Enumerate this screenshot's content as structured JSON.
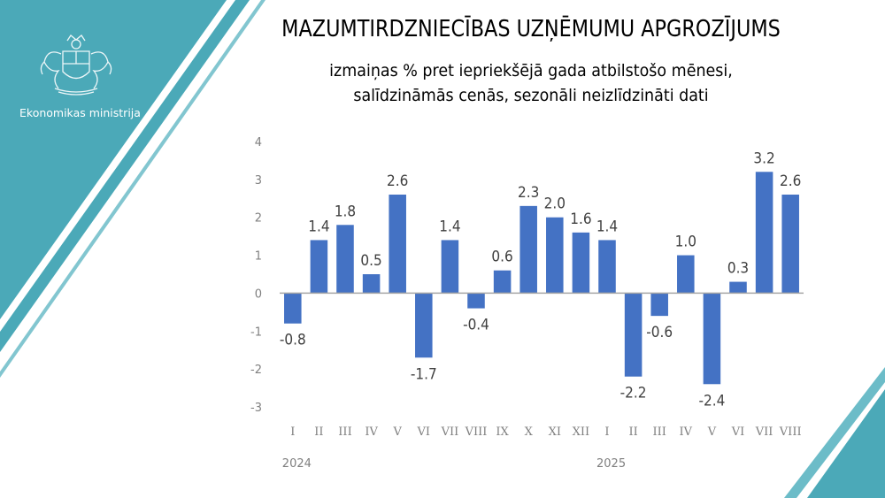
{
  "header": {
    "title": "MAZUMTIRDZNIECĪBAS UZŅĒMUMU APGROZĪJUMS",
    "subtitle_line1": "izmaiņas % pret iepriekšējā gada atbilstošo mēnesi,",
    "subtitle_line2": "salīdzināmās cenās, sezonāli neizlīdzināti dati"
  },
  "branding": {
    "ministry": "Ekonomikas ministrija",
    "logo_icon": "latvia-coat-of-arms-icon"
  },
  "colors": {
    "bar": "#4472C4",
    "panel_teal": "#4BA9B8",
    "panel_teal_light": "#6CBCC8",
    "axis_text": "#7F7F7F"
  },
  "chart_data": {
    "type": "bar",
    "categories": [
      "I",
      "II",
      "III",
      "IV",
      "V",
      "VI",
      "VII",
      "VIII",
      "IX",
      "X",
      "XI",
      "XII",
      "I",
      "II",
      "III",
      "IV",
      "V",
      "VI",
      "VII",
      "VIII"
    ],
    "year_labels": [
      {
        "text": "2024",
        "index": 0
      },
      {
        "text": "2025",
        "index": 12
      }
    ],
    "values": [
      -0.8,
      1.4,
      1.8,
      0.5,
      2.6,
      -1.7,
      1.4,
      -0.4,
      0.6,
      2.3,
      2.0,
      1.6,
      1.4,
      -2.2,
      -0.6,
      1.0,
      -2.4,
      0.3,
      3.2,
      2.6
    ],
    "data_labels": [
      "-0.8",
      "1.4",
      "1.8",
      "0.5",
      "2.6",
      "-1.7",
      "1.4",
      "-0.4",
      "0.6",
      "2.3",
      "2.0",
      "1.6",
      "1.4",
      "-2.2",
      "-0.6",
      "1.0",
      "-2.4",
      "0.3",
      "3.2",
      "2.6"
    ],
    "yticks": [
      4,
      3,
      2,
      1,
      0,
      -1,
      -2,
      -3
    ],
    "ylim": [
      -3,
      4
    ],
    "grid": false,
    "legend": "none"
  }
}
